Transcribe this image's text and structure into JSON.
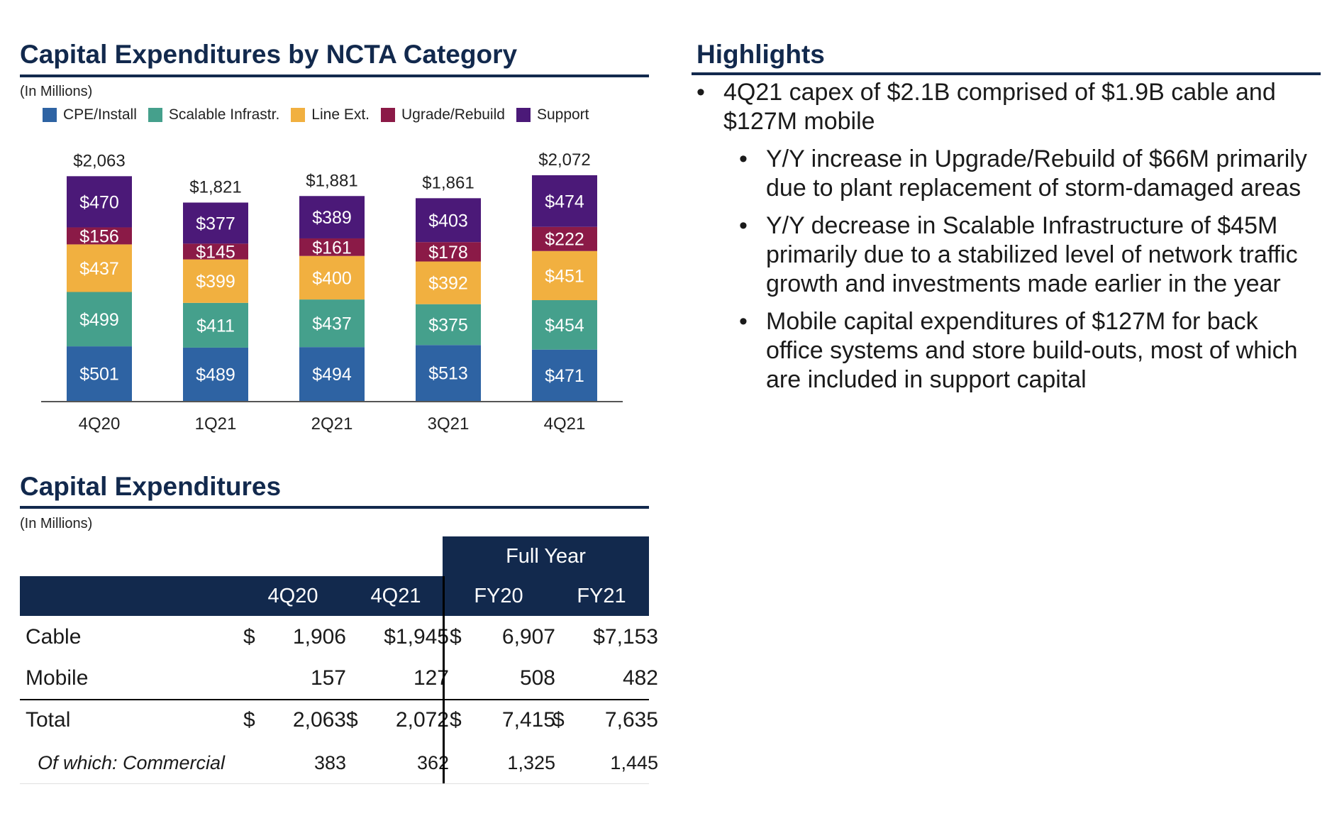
{
  "left_top": {
    "title": "Capital Expenditures by NCTA Category",
    "subnote": "(In Millions)"
  },
  "right": {
    "title": "Highlights",
    "bullets": [
      {
        "text": "4Q21 capex of $2.1B comprised of $1.9B cable and $127M mobile",
        "subs": [
          "Y/Y increase in Upgrade/Rebuild of $66M primarily due to plant replacement of storm-damaged areas",
          "Y/Y decrease in Scalable Infrastructure of $45M primarily due to a stabilized level of network traffic growth and investments made earlier in the year",
          "Mobile capital expenditures of $127M for back office systems and store build-outs, most of which are included in support capital"
        ]
      }
    ]
  },
  "chart_data": {
    "type": "bar",
    "stacked": true,
    "categories": [
      "4Q20",
      "1Q21",
      "2Q21",
      "3Q21",
      "4Q21"
    ],
    "series": [
      {
        "name": "CPE/Install",
        "color": "#2e63a3",
        "values": [
          501,
          489,
          494,
          513,
          471
        ],
        "labels": [
          "$501",
          "$489",
          "$494",
          "$513",
          "$471"
        ]
      },
      {
        "name": "Scalable Infrastr.",
        "color": "#45a08c",
        "values": [
          499,
          411,
          437,
          375,
          454
        ],
        "labels": [
          "$499",
          "$411",
          "$437",
          "$375",
          "$454"
        ]
      },
      {
        "name": "Line Ext.",
        "color": "#f1b040",
        "values": [
          437,
          399,
          400,
          392,
          451
        ],
        "labels": [
          "$437",
          "$399",
          "$400",
          "$392",
          "$451"
        ]
      },
      {
        "name": "Ugrade/Rebuild",
        "color": "#8b1a47",
        "values": [
          156,
          145,
          161,
          178,
          222
        ],
        "labels": [
          "$156",
          "$145",
          "$161",
          "$178",
          "$222"
        ]
      },
      {
        "name": "Support",
        "color": "#4b1978",
        "values": [
          470,
          377,
          389,
          403,
          474
        ],
        "labels": [
          "$470",
          "$377",
          "$389",
          "$403",
          "$474"
        ]
      }
    ],
    "totals": [
      "$2,063",
      "$1,821",
      "$1,881",
      "$1,861",
      "$2,072"
    ],
    "legend_position": "top",
    "grid": false
  },
  "table": {
    "title": "Capital Expenditures",
    "subnote": "(In Millions)",
    "group_header": "Full Year",
    "columns": [
      "4Q20",
      "4Q21",
      "FY20",
      "FY21"
    ],
    "rows": [
      {
        "label": "Cable",
        "c1": "1,906",
        "c1_dollar": "$",
        "c2": "$1,945",
        "c2_dollar": "",
        "c3": "6,907",
        "c3_dollar": "$",
        "c4": "$7,153",
        "c4_dollar": ""
      },
      {
        "label": "Mobile",
        "c1": "157",
        "c1_dollar": "",
        "c2": "127",
        "c2_dollar": "",
        "c3": "508",
        "c3_dollar": "",
        "c4": "482",
        "c4_dollar": ""
      },
      {
        "label": "Total",
        "c1": "2,063",
        "c1_dollar": "$",
        "c2": "2,072",
        "c2_dollar": "$",
        "c3": "7,415",
        "c3_dollar": "$",
        "c4": "7,635",
        "c4_dollar": "$"
      },
      {
        "label": "Of which: Commercial",
        "c1": "383",
        "c1_dollar": "",
        "c2": "362",
        "c2_dollar": "",
        "c3": "1,325",
        "c3_dollar": "",
        "c4": "1,445",
        "c4_dollar": ""
      }
    ]
  }
}
